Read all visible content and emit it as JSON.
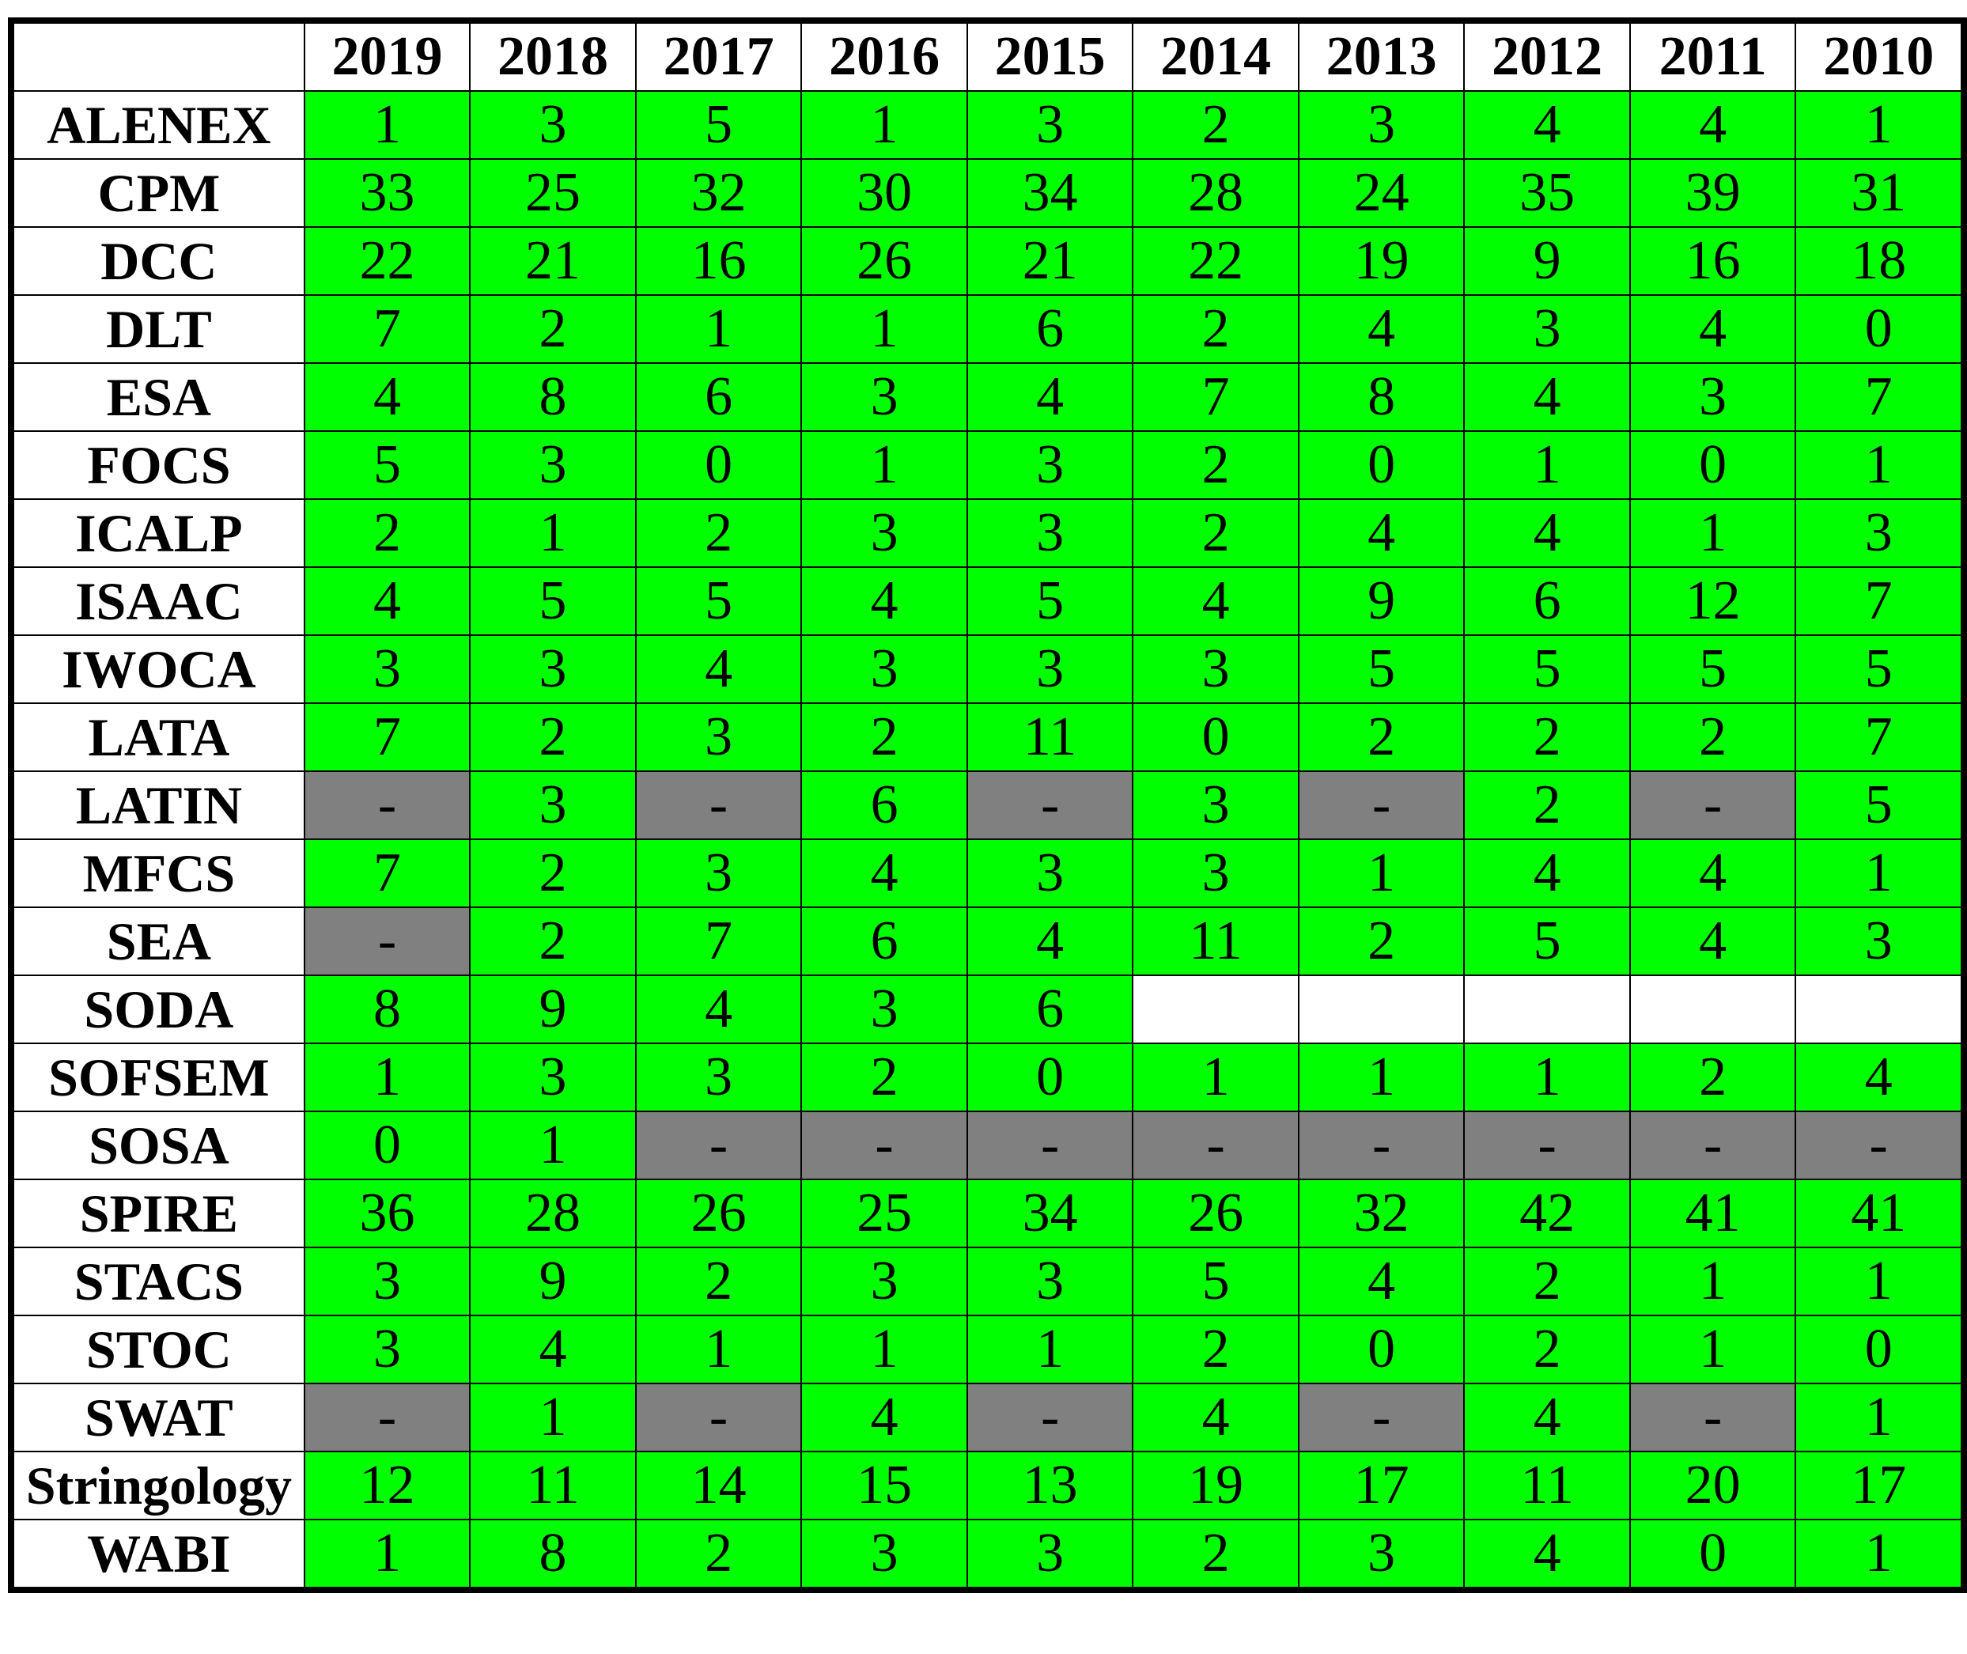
{
  "colors": {
    "value_cell": "#00ff00",
    "dash_cell": "#808080",
    "empty_cell": "#ffffff",
    "border": "#000000"
  },
  "chart_data": {
    "type": "table",
    "columns": [
      "2019",
      "2018",
      "2017",
      "2016",
      "2015",
      "2014",
      "2013",
      "2012",
      "2011",
      "2010"
    ],
    "rows": [
      {
        "name": "ALENEX",
        "values": [
          "1",
          "3",
          "5",
          "1",
          "3",
          "2",
          "3",
          "4",
          "4",
          "1"
        ]
      },
      {
        "name": "CPM",
        "values": [
          "33",
          "25",
          "32",
          "30",
          "34",
          "28",
          "24",
          "35",
          "39",
          "31"
        ]
      },
      {
        "name": "DCC",
        "values": [
          "22",
          "21",
          "16",
          "26",
          "21",
          "22",
          "19",
          "9",
          "16",
          "18"
        ]
      },
      {
        "name": "DLT",
        "values": [
          "7",
          "2",
          "1",
          "1",
          "6",
          "2",
          "4",
          "3",
          "4",
          "0"
        ]
      },
      {
        "name": "ESA",
        "values": [
          "4",
          "8",
          "6",
          "3",
          "4",
          "7",
          "8",
          "4",
          "3",
          "7"
        ]
      },
      {
        "name": "FOCS",
        "values": [
          "5",
          "3",
          "0",
          "1",
          "3",
          "2",
          "0",
          "1",
          "0",
          "1"
        ]
      },
      {
        "name": "ICALP",
        "values": [
          "2",
          "1",
          "2",
          "3",
          "3",
          "2",
          "4",
          "4",
          "1",
          "3"
        ]
      },
      {
        "name": "ISAAC",
        "values": [
          "4",
          "5",
          "5",
          "4",
          "5",
          "4",
          "9",
          "6",
          "12",
          "7"
        ]
      },
      {
        "name": "IWOCA",
        "values": [
          "3",
          "3",
          "4",
          "3",
          "3",
          "3",
          "5",
          "5",
          "5",
          "5"
        ]
      },
      {
        "name": "LATA",
        "values": [
          "7",
          "2",
          "3",
          "2",
          "11",
          "0",
          "2",
          "2",
          "2",
          "7"
        ]
      },
      {
        "name": "LATIN",
        "values": [
          "-",
          "3",
          "-",
          "6",
          "-",
          "3",
          "-",
          "2",
          "-",
          "5"
        ]
      },
      {
        "name": "MFCS",
        "values": [
          "7",
          "2",
          "3",
          "4",
          "3",
          "3",
          "1",
          "4",
          "4",
          "1"
        ]
      },
      {
        "name": "SEA",
        "values": [
          "-",
          "2",
          "7",
          "6",
          "4",
          "11",
          "2",
          "5",
          "4",
          "3"
        ]
      },
      {
        "name": "SODA",
        "values": [
          "8",
          "9",
          "4",
          "3",
          "6",
          "",
          "",
          "",
          "",
          ""
        ]
      },
      {
        "name": "SOFSEM",
        "values": [
          "1",
          "3",
          "3",
          "2",
          "0",
          "1",
          "1",
          "1",
          "2",
          "4"
        ]
      },
      {
        "name": "SOSA",
        "values": [
          "0",
          "1",
          "-",
          "-",
          "-",
          "-",
          "-",
          "-",
          "-",
          "-"
        ]
      },
      {
        "name": "SPIRE",
        "values": [
          "36",
          "28",
          "26",
          "25",
          "34",
          "26",
          "32",
          "42",
          "41",
          "41"
        ]
      },
      {
        "name": "STACS",
        "values": [
          "3",
          "9",
          "2",
          "3",
          "3",
          "5",
          "4",
          "2",
          "1",
          "1"
        ]
      },
      {
        "name": "STOC",
        "values": [
          "3",
          "4",
          "1",
          "1",
          "1",
          "2",
          "0",
          "2",
          "1",
          "0"
        ]
      },
      {
        "name": "SWAT",
        "values": [
          "-",
          "1",
          "-",
          "4",
          "-",
          "4",
          "-",
          "4",
          "-",
          "1"
        ]
      },
      {
        "name": "Stringology",
        "values": [
          "12",
          "11",
          "14",
          "15",
          "13",
          "19",
          "17",
          "11",
          "20",
          "17"
        ]
      },
      {
        "name": "WABI",
        "values": [
          "1",
          "8",
          "2",
          "3",
          "3",
          "2",
          "3",
          "4",
          "0",
          "1"
        ]
      }
    ]
  }
}
